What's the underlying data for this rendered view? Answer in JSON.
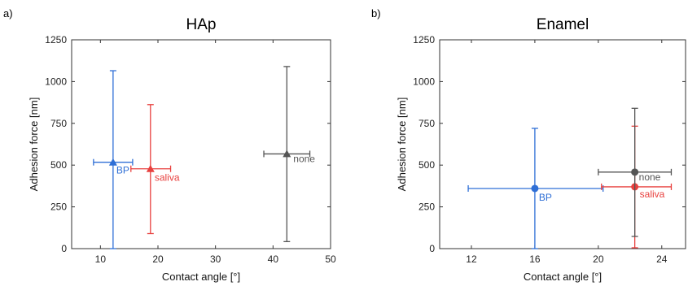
{
  "chart_data": [
    {
      "panel_label": "a)",
      "type": "scatter",
      "title": "HAp",
      "xlabel": "Contact angle [°]",
      "ylabel": "Adhesion force [nm]",
      "xlim": [
        5,
        50
      ],
      "ylim": [
        0,
        1250
      ],
      "xticks": [
        10,
        20,
        30,
        40,
        50
      ],
      "yticks": [
        0,
        250,
        500,
        750,
        1000,
        1250
      ],
      "grid": false,
      "marker": "triangle",
      "series": [
        {
          "name": "BP",
          "color": "#2f6fd6",
          "x": 12.2,
          "y": 517,
          "xerr": [
            8.8,
            15.6
          ],
          "yerr": [
            0,
            1065
          ]
        },
        {
          "name": "saliva",
          "color": "#e8403e",
          "x": 18.7,
          "y": 478,
          "xerr": [
            15.3,
            22.2
          ],
          "yerr": [
            90,
            862
          ]
        },
        {
          "name": "none",
          "color": "#555555",
          "x": 42.4,
          "y": 567,
          "xerr": [
            38.4,
            46.4
          ],
          "yerr": [
            42,
            1090
          ]
        }
      ]
    },
    {
      "panel_label": "b)",
      "type": "scatter",
      "title": "Enamel",
      "xlabel": "Contact angle [°]",
      "ylabel": "Adhesion force [nm]",
      "xlim": [
        10,
        25.5
      ],
      "ylim": [
        0,
        1250
      ],
      "xticks": [
        12,
        16,
        20,
        24
      ],
      "yticks": [
        0,
        250,
        500,
        750,
        1000,
        1250
      ],
      "grid": false,
      "marker": "circle",
      "series": [
        {
          "name": "BP",
          "color": "#2f6fd6",
          "x": 16.0,
          "y": 360,
          "xerr": [
            11.8,
            20.3
          ],
          "yerr": [
            0,
            720
          ]
        },
        {
          "name": "saliva",
          "color": "#e8403e",
          "x": 22.3,
          "y": 370,
          "xerr": [
            20.2,
            24.6
          ],
          "yerr": [
            5,
            733
          ]
        },
        {
          "name": "none",
          "color": "#555555",
          "x": 22.3,
          "y": 458,
          "xerr": [
            20.0,
            24.6
          ],
          "yerr": [
            73,
            840
          ]
        }
      ]
    }
  ]
}
